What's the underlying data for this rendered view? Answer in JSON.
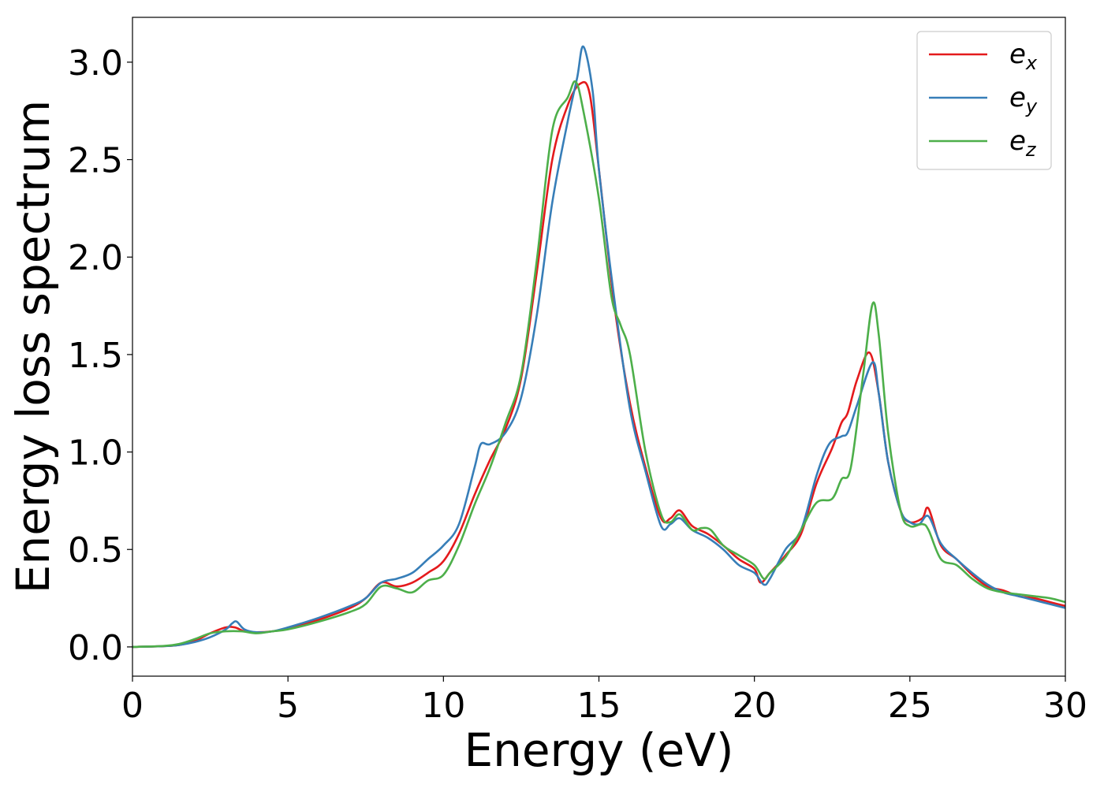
{
  "chart_data": {
    "type": "line",
    "title": "",
    "xlabel": "Energy (eV)",
    "ylabel": "Energy loss spectrum",
    "xlim": [
      0,
      30
    ],
    "ylim": [
      -0.15,
      3.23
    ],
    "xticks": [
      0,
      5,
      10,
      15,
      20,
      25,
      30
    ],
    "xtick_labels": [
      "0",
      "5",
      "10",
      "15",
      "20",
      "25",
      "30"
    ],
    "yticks": [
      0.0,
      0.5,
      1.0,
      1.5,
      2.0,
      2.5,
      3.0
    ],
    "ytick_labels": [
      "0.0",
      "0.5",
      "1.0",
      "1.5",
      "2.0",
      "2.5",
      "3.0"
    ],
    "grid": false,
    "legend_position": "top-right",
    "series": [
      {
        "name": "e_x",
        "label_base": "e",
        "label_sub": "x",
        "color": "#e41a1c",
        "points": [
          [
            0,
            0
          ],
          [
            1,
            0.004
          ],
          [
            1.5,
            0.01
          ],
          [
            2,
            0.03
          ],
          [
            2.5,
            0.07
          ],
          [
            3,
            0.1
          ],
          [
            3.3,
            0.1
          ],
          [
            3.6,
            0.08
          ],
          [
            4,
            0.075
          ],
          [
            4.5,
            0.08
          ],
          [
            5,
            0.095
          ],
          [
            6,
            0.14
          ],
          [
            7,
            0.2
          ],
          [
            7.5,
            0.25
          ],
          [
            8,
            0.33
          ],
          [
            8.5,
            0.31
          ],
          [
            9,
            0.33
          ],
          [
            9.5,
            0.38
          ],
          [
            10,
            0.44
          ],
          [
            10.5,
            0.58
          ],
          [
            11,
            0.78
          ],
          [
            11.5,
            0.96
          ],
          [
            12,
            1.12
          ],
          [
            12.5,
            1.38
          ],
          [
            13,
            1.92
          ],
          [
            13.5,
            2.5
          ],
          [
            14,
            2.78
          ],
          [
            14.4,
            2.89
          ],
          [
            14.7,
            2.84
          ],
          [
            15,
            2.45
          ],
          [
            15.5,
            1.75
          ],
          [
            16,
            1.25
          ],
          [
            16.5,
            0.92
          ],
          [
            17,
            0.66
          ],
          [
            17.3,
            0.66
          ],
          [
            17.6,
            0.7
          ],
          [
            18,
            0.62
          ],
          [
            18.5,
            0.58
          ],
          [
            19,
            0.52
          ],
          [
            19.5,
            0.45
          ],
          [
            20,
            0.4
          ],
          [
            20.2,
            0.33
          ],
          [
            20.5,
            0.38
          ],
          [
            21,
            0.47
          ],
          [
            21.5,
            0.58
          ],
          [
            22,
            0.84
          ],
          [
            22.5,
            1.02
          ],
          [
            22.8,
            1.15
          ],
          [
            23,
            1.2
          ],
          [
            23.3,
            1.37
          ],
          [
            23.7,
            1.51
          ],
          [
            24,
            1.3
          ],
          [
            24.3,
            0.95
          ],
          [
            24.7,
            0.7
          ],
          [
            25,
            0.64
          ],
          [
            25.4,
            0.66
          ],
          [
            25.6,
            0.71
          ],
          [
            26,
            0.52
          ],
          [
            26.5,
            0.45
          ],
          [
            27,
            0.37
          ],
          [
            27.5,
            0.31
          ],
          [
            28,
            0.29
          ],
          [
            28.5,
            0.26
          ],
          [
            29,
            0.25
          ],
          [
            29.5,
            0.23
          ],
          [
            30,
            0.21
          ]
        ]
      },
      {
        "name": "e_y",
        "label_base": "e",
        "label_sub": "y",
        "color": "#377eb8",
        "points": [
          [
            0,
            0
          ],
          [
            1,
            0.004
          ],
          [
            1.5,
            0.01
          ],
          [
            2,
            0.025
          ],
          [
            2.5,
            0.05
          ],
          [
            3,
            0.09
          ],
          [
            3.2,
            0.12
          ],
          [
            3.35,
            0.13
          ],
          [
            3.6,
            0.09
          ],
          [
            4,
            0.075
          ],
          [
            4.5,
            0.08
          ],
          [
            5,
            0.1
          ],
          [
            6,
            0.15
          ],
          [
            7,
            0.21
          ],
          [
            7.5,
            0.25
          ],
          [
            8,
            0.33
          ],
          [
            8.5,
            0.35
          ],
          [
            9,
            0.38
          ],
          [
            9.5,
            0.45
          ],
          [
            10,
            0.52
          ],
          [
            10.5,
            0.63
          ],
          [
            11,
            0.92
          ],
          [
            11.2,
            1.04
          ],
          [
            11.5,
            1.04
          ],
          [
            12,
            1.1
          ],
          [
            12.5,
            1.28
          ],
          [
            13,
            1.7
          ],
          [
            13.5,
            2.28
          ],
          [
            14,
            2.7
          ],
          [
            14.3,
            2.92
          ],
          [
            14.5,
            3.08
          ],
          [
            14.8,
            2.85
          ],
          [
            15,
            2.45
          ],
          [
            15.5,
            1.78
          ],
          [
            16,
            1.22
          ],
          [
            16.5,
            0.9
          ],
          [
            17,
            0.62
          ],
          [
            17.3,
            0.63
          ],
          [
            17.6,
            0.66
          ],
          [
            18,
            0.6
          ],
          [
            18.5,
            0.56
          ],
          [
            19,
            0.5
          ],
          [
            19.5,
            0.42
          ],
          [
            20,
            0.38
          ],
          [
            20.3,
            0.32
          ],
          [
            20.5,
            0.35
          ],
          [
            21,
            0.5
          ],
          [
            21.5,
            0.6
          ],
          [
            22,
            0.88
          ],
          [
            22.4,
            1.04
          ],
          [
            22.8,
            1.08
          ],
          [
            23,
            1.1
          ],
          [
            23.3,
            1.24
          ],
          [
            23.8,
            1.46
          ],
          [
            24,
            1.3
          ],
          [
            24.3,
            0.95
          ],
          [
            24.7,
            0.7
          ],
          [
            25,
            0.64
          ],
          [
            25.3,
            0.63
          ],
          [
            25.6,
            0.67
          ],
          [
            26,
            0.53
          ],
          [
            26.5,
            0.45
          ],
          [
            27,
            0.38
          ],
          [
            27.5,
            0.32
          ],
          [
            28,
            0.28
          ],
          [
            28.5,
            0.26
          ],
          [
            29,
            0.24
          ],
          [
            29.5,
            0.22
          ],
          [
            30,
            0.2
          ]
        ]
      },
      {
        "name": "e_z",
        "label_base": "e",
        "label_sub": "z",
        "color": "#4daf4a",
        "points": [
          [
            0,
            0
          ],
          [
            1,
            0.005
          ],
          [
            1.5,
            0.015
          ],
          [
            2,
            0.04
          ],
          [
            2.5,
            0.07
          ],
          [
            3,
            0.08
          ],
          [
            3.5,
            0.08
          ],
          [
            4,
            0.07
          ],
          [
            4.5,
            0.08
          ],
          [
            5,
            0.09
          ],
          [
            6,
            0.13
          ],
          [
            7,
            0.18
          ],
          [
            7.5,
            0.22
          ],
          [
            8,
            0.31
          ],
          [
            8.5,
            0.3
          ],
          [
            9,
            0.28
          ],
          [
            9.5,
            0.34
          ],
          [
            10,
            0.37
          ],
          [
            10.5,
            0.52
          ],
          [
            11,
            0.73
          ],
          [
            11.5,
            0.92
          ],
          [
            12,
            1.15
          ],
          [
            12.5,
            1.4
          ],
          [
            13,
            1.98
          ],
          [
            13.5,
            2.65
          ],
          [
            14,
            2.82
          ],
          [
            14.25,
            2.9
          ],
          [
            14.5,
            2.75
          ],
          [
            15,
            2.3
          ],
          [
            15.4,
            1.8
          ],
          [
            15.7,
            1.65
          ],
          [
            16,
            1.5
          ],
          [
            16.5,
            1.0
          ],
          [
            17,
            0.68
          ],
          [
            17.3,
            0.64
          ],
          [
            17.6,
            0.68
          ],
          [
            18,
            0.6
          ],
          [
            18.3,
            0.61
          ],
          [
            18.6,
            0.6
          ],
          [
            19,
            0.52
          ],
          [
            19.5,
            0.47
          ],
          [
            20,
            0.42
          ],
          [
            20.3,
            0.35
          ],
          [
            20.5,
            0.38
          ],
          [
            21,
            0.46
          ],
          [
            21.5,
            0.6
          ],
          [
            22,
            0.74
          ],
          [
            22.5,
            0.76
          ],
          [
            22.8,
            0.86
          ],
          [
            23.1,
            0.92
          ],
          [
            23.5,
            1.4
          ],
          [
            23.8,
            1.76
          ],
          [
            24,
            1.6
          ],
          [
            24.3,
            1.1
          ],
          [
            24.7,
            0.7
          ],
          [
            25,
            0.62
          ],
          [
            25.4,
            0.63
          ],
          [
            25.6,
            0.6
          ],
          [
            26,
            0.45
          ],
          [
            26.5,
            0.42
          ],
          [
            27,
            0.35
          ],
          [
            27.5,
            0.3
          ],
          [
            28,
            0.28
          ],
          [
            28.5,
            0.27
          ],
          [
            29,
            0.26
          ],
          [
            29.5,
            0.25
          ],
          [
            30,
            0.23
          ]
        ]
      }
    ]
  }
}
